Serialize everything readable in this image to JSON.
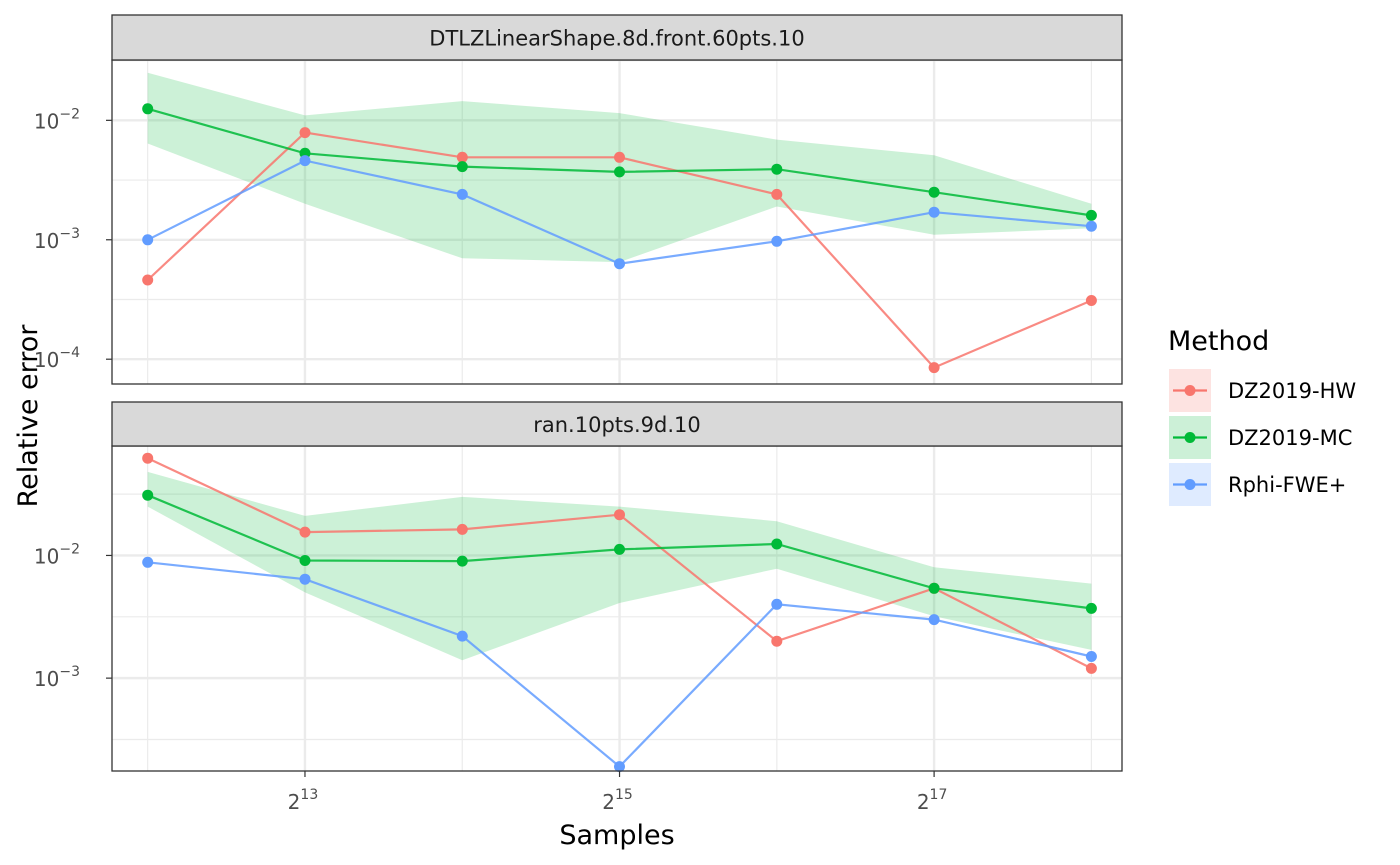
{
  "chart_data": {
    "type": "line",
    "xlabel": "Samples",
    "ylabel": "Relative error",
    "x_scale": "log2",
    "y_scale": "log10",
    "x": [
      4096,
      8192,
      16384,
      32768,
      65536,
      131072,
      262144
    ],
    "x_ticks": [
      {
        "value": 8192,
        "base": "2",
        "exp": "13"
      },
      {
        "value": 32768,
        "base": "2",
        "exp": "15"
      },
      {
        "value": 131072,
        "base": "2",
        "exp": "17"
      }
    ],
    "xlim": [
      3500,
      300000
    ],
    "grid": true,
    "legend": {
      "title": "Method",
      "position": "right",
      "entries": [
        {
          "label": "DZ2019-HW",
          "color": "#F8766D",
          "fill": "#FDE3E1"
        },
        {
          "label": "DZ2019-MC",
          "color": "#00BA38",
          "fill": "#CCF0D7"
        },
        {
          "label": "Rphi-FWE+",
          "color": "#619CFF",
          "fill": "#DFEBFF"
        }
      ]
    },
    "panels": [
      {
        "title": "DTLZLinearShape.8d.front.60pts.10",
        "ylim": [
          6.2e-05,
          0.032
        ],
        "y_ticks": [
          {
            "value": 0.0001,
            "base": "10",
            "exp": "−4"
          },
          {
            "value": 0.001,
            "base": "10",
            "exp": "−3"
          },
          {
            "value": 0.01,
            "base": "10",
            "exp": "−2"
          }
        ],
        "series": [
          {
            "name": "DZ2019-HW",
            "color": "#F8766D",
            "values": [
              0.00046,
              0.0079,
              0.0049,
              0.0049,
              0.0024,
              8.5e-05,
              0.00031
            ]
          },
          {
            "name": "DZ2019-MC",
            "color": "#00BA38",
            "values": [
              0.0125,
              0.0053,
              0.0041,
              0.0037,
              0.0039,
              0.0025,
              0.0016
            ]
          },
          {
            "name": "Rphi-FWE+",
            "color": "#619CFF",
            "values": [
              0.001,
              0.0046,
              0.0024,
              0.00063,
              0.00097,
              0.0017,
              0.0013
            ]
          }
        ],
        "ribbon": {
          "series": "DZ2019-MC",
          "lower": [
            0.0064,
            0.002,
            0.0007,
            0.00065,
            0.0019,
            0.0011,
            0.00125
          ],
          "upper": [
            0.025,
            0.011,
            0.0145,
            0.0115,
            0.0069,
            0.0051,
            0.002
          ]
        }
      },
      {
        "title": "ran.10pts.9d.10",
        "ylim": [
          0.000175,
          0.078
        ],
        "y_ticks": [
          {
            "value": 0.001,
            "base": "10",
            "exp": "−3"
          },
          {
            "value": 0.01,
            "base": "10",
            "exp": "−2"
          }
        ],
        "series": [
          {
            "name": "DZ2019-HW",
            "color": "#F8766D",
            "values": [
              0.062,
              0.0155,
              0.0163,
              0.0215,
              0.002,
              0.0054,
              0.0012
            ]
          },
          {
            "name": "DZ2019-MC",
            "color": "#00BA38",
            "values": [
              0.031,
              0.0091,
              0.009,
              0.0112,
              0.0124,
              0.0054,
              0.0037
            ]
          },
          {
            "name": "Rphi-FWE+",
            "color": "#619CFF",
            "values": [
              0.0088,
              0.0064,
              0.0022,
              0.00019,
              0.004,
              0.003,
              0.0015
            ]
          }
        ],
        "ribbon": {
          "series": "DZ2019-MC",
          "lower": [
            0.025,
            0.005,
            0.0014,
            0.0041,
            0.0078,
            0.0032,
            0.0017
          ],
          "upper": [
            0.048,
            0.021,
            0.03,
            0.025,
            0.019,
            0.008,
            0.0059
          ]
        }
      }
    ]
  }
}
